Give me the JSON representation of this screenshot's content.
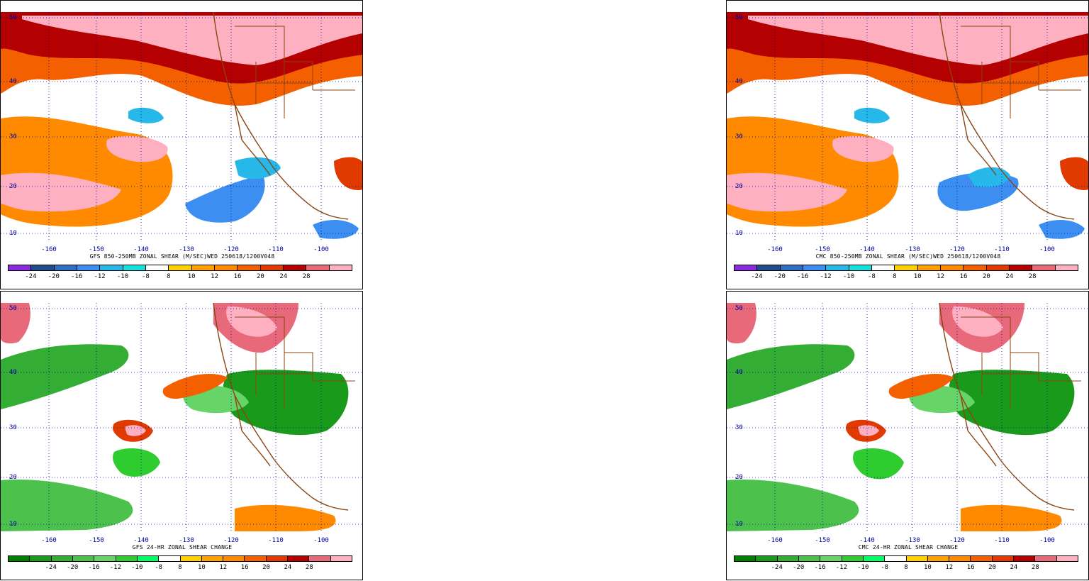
{
  "colors": {
    "shear_scale": [
      "#8a2be2",
      "#1e4f8a",
      "#2f6fc4",
      "#3c8ff0",
      "#26b8e8",
      "#14e0e0",
      "#ffffff",
      "#ffd000",
      "#ffa000",
      "#ff8a00",
      "#f46000",
      "#e03a00",
      "#b40000",
      "#e86a7a",
      "#ffb0c0"
    ],
    "change_scale": [
      "#008000",
      "#1a9a1a",
      "#33ad33",
      "#4cc24c",
      "#66d466",
      "#2ecc2e",
      "#00ff66",
      "#ffffff",
      "#ffd000",
      "#ffa000",
      "#ff8a00",
      "#f46000",
      "#e03a00",
      "#b40000",
      "#e86a7a",
      "#ffb0c0"
    ],
    "coast": "#8b4513",
    "grid": "#0000a0"
  },
  "longitude_labels": [
    "-160",
    "-150",
    "-140",
    "-130",
    "-120",
    "-110",
    "-100"
  ],
  "latitude_labels": [
    "50",
    "40",
    "30",
    "20",
    "10"
  ],
  "colorbar_labels": [
    "-24",
    "-20",
    "-16",
    "-12",
    "-10",
    "-8",
    "8",
    "10",
    "12",
    "16",
    "20",
    "24",
    "28"
  ],
  "panels": {
    "top_left": {
      "caption": "GFS 850-250MB ZONAL SHEAR (M/SEC)WED 250618/1200V048"
    },
    "top_right": {
      "caption": "CMC 850-250MB ZONAL SHEAR (M/SEC)WED 250618/1200V048"
    },
    "bottom_left": {
      "caption": "GFS 24-HR ZONAL SHEAR CHANGE"
    },
    "bottom_right": {
      "caption": "CMC 24-HR ZONAL SHEAR CHANGE"
    }
  }
}
